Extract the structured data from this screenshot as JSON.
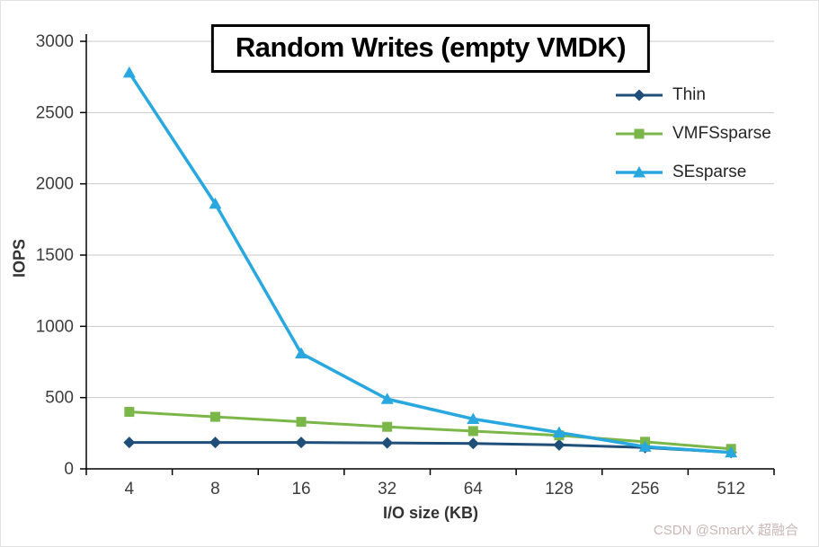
{
  "watermark": "CSDN @SmartX 超融合",
  "chart_data": {
    "type": "line",
    "title": "Random Writes (empty VMDK)",
    "xlabel": "I/O size (KB)",
    "ylabel": "IOPS",
    "categories": [
      "4",
      "8",
      "16",
      "32",
      "64",
      "128",
      "256",
      "512"
    ],
    "ylim": [
      0,
      3000
    ],
    "ytick_interval": 500,
    "grid": true,
    "legend_position": "top-right",
    "gridline_color": "#c9c9c9",
    "axis_color": "#000000",
    "series": [
      {
        "name": "Thin",
        "color": "#1f4e79",
        "marker": "diamond",
        "values": [
          185,
          185,
          185,
          182,
          178,
          168,
          150,
          115
        ]
      },
      {
        "name": "VMFSsparse",
        "color": "#7ab648",
        "marker": "square",
        "values": [
          400,
          365,
          330,
          295,
          265,
          235,
          190,
          140
        ]
      },
      {
        "name": "SEsparse",
        "color": "#29a8df",
        "marker": "triangle",
        "values": [
          2780,
          1860,
          810,
          490,
          350,
          255,
          155,
          115
        ]
      }
    ]
  }
}
